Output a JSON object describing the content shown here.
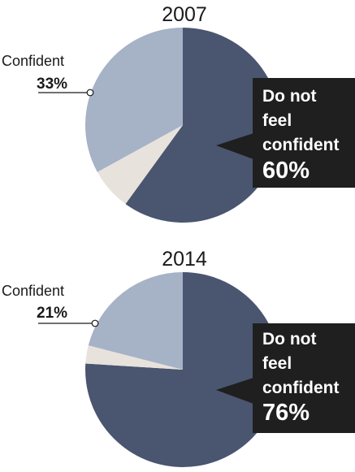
{
  "chart_data": [
    {
      "type": "pie",
      "title": "2007",
      "slices": [
        {
          "label": "Do not feel confident",
          "value": 60,
          "value_label": "60%",
          "color": "#4a5570"
        },
        {
          "label": "",
          "value": 7,
          "color": "#e7e3dc"
        },
        {
          "label": "Confident",
          "value": 33,
          "value_label": "33%",
          "color": "#a6b2c6"
        }
      ],
      "callout_lines": [
        "Do not",
        "feel",
        "confident"
      ]
    },
    {
      "type": "pie",
      "title": "2014",
      "slices": [
        {
          "label": "Do not feel confident",
          "value": 76,
          "value_label": "76%",
          "color": "#4a5570"
        },
        {
          "label": "",
          "value": 3,
          "color": "#e7e3dc"
        },
        {
          "label": "Confident",
          "value": 21,
          "value_label": "21%",
          "color": "#a6b2c6"
        }
      ],
      "callout_lines": [
        "Do not",
        "feel",
        "confident"
      ]
    }
  ],
  "colors": {
    "dark": "#4a5570",
    "light": "#a6b2c6",
    "neutral": "#e7e3dc",
    "callout_bg": "#1f1f1f"
  }
}
